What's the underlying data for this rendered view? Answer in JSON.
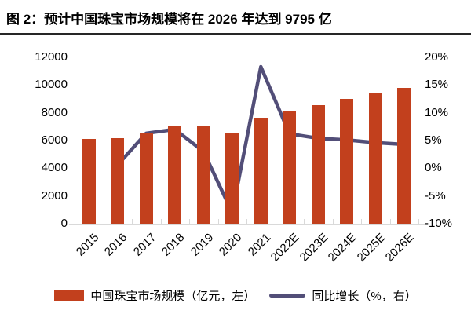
{
  "figure": {
    "title": "图 2：预计中国珠宝市场规模将在 2026 年达到 9795 亿"
  },
  "chart_data": {
    "type": "bar",
    "combo": "bar+line",
    "title": "预计中国珠宝市场规模将在 2026 年达到 9795 亿",
    "categories": [
      "2015",
      "2016",
      "2017",
      "2018",
      "2019",
      "2020",
      "2021",
      "2022E",
      "2023E",
      "2024E",
      "2025E",
      "2026E"
    ],
    "series": [
      {
        "name": "中国珠宝市场规模（亿元，左）",
        "type": "bar",
        "axis": "left",
        "color": "#c2401d",
        "values": [
          6100,
          6150,
          6550,
          7050,
          7100,
          6500,
          7650,
          8100,
          8550,
          9000,
          9400,
          9795
        ]
      },
      {
        "name": "同比增长（%，右）",
        "type": "line",
        "axis": "right",
        "color": "#524e78",
        "values": [
          null,
          0.6,
          6.3,
          7.0,
          3.0,
          -8.0,
          18.3,
          6.2,
          5.4,
          5.1,
          4.6,
          4.3
        ]
      }
    ],
    "left_axis": {
      "min": 0,
      "max": 12000,
      "step": 2000,
      "tick_labels": [
        "12000",
        "10000",
        "8000",
        "6000",
        "4000",
        "2000",
        "0"
      ]
    },
    "right_axis": {
      "min": -10,
      "max": 20,
      "step": 5,
      "tick_labels": [
        "20%",
        "15%",
        "10%",
        "5%",
        "0%",
        "-5%",
        "-10%"
      ]
    },
    "grid": false,
    "legend_position": "bottom",
    "axis_line_color": "#d9d9d9"
  }
}
